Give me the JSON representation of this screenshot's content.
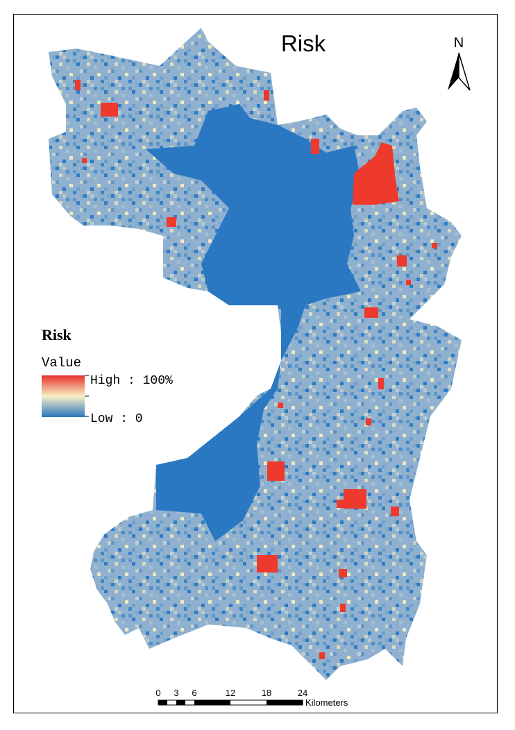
{
  "title": "Risk",
  "north_label": "N",
  "legend": {
    "title": "Risk",
    "subtitle": "Value",
    "high_label": "High : 100%",
    "low_label": "Low : 0"
  },
  "scale_bar": {
    "labels": [
      "0",
      "3",
      "6",
      "12",
      "18",
      "24"
    ],
    "unit": "Kilometers"
  }
}
